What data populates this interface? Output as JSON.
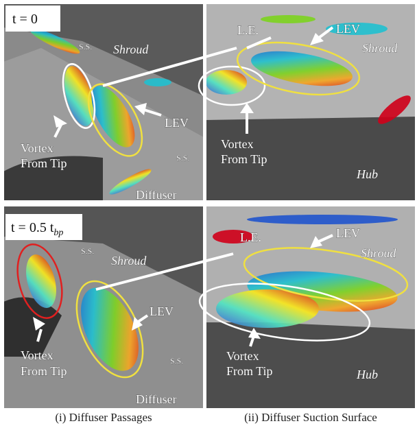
{
  "panels": [
    {
      "time": {
        "text": "t = 0"
      },
      "shroud": "Shroud",
      "ss": [
        "S.S.",
        "S.S."
      ],
      "lev": "LEV",
      "vortex": [
        "Vortex",
        "From Tip"
      ],
      "diffuser": "Diffuser"
    },
    {
      "le": "L.E.",
      "lev": "LEV",
      "shroud": "Shroud",
      "vortex": [
        "Vortex",
        "From Tip"
      ],
      "hub": "Hub"
    },
    {
      "time": {
        "text": "t = 0.5 t",
        "subscript": "bp"
      },
      "shroud": "Shroud",
      "ss": [
        "S.S.",
        "S.S."
      ],
      "lev": "LEV",
      "vortex": [
        "Vortex",
        "From Tip"
      ],
      "diffuser": "Diffuser"
    },
    {
      "le": "L.E.",
      "lev": "LEV",
      "shroud": "Shroud",
      "vortex": [
        "Vortex",
        "From Tip"
      ],
      "hub": "Hub"
    }
  ],
  "captions": [
    "(i) Diffuser Passages",
    "(ii) Diffuser Suction Surface"
  ]
}
